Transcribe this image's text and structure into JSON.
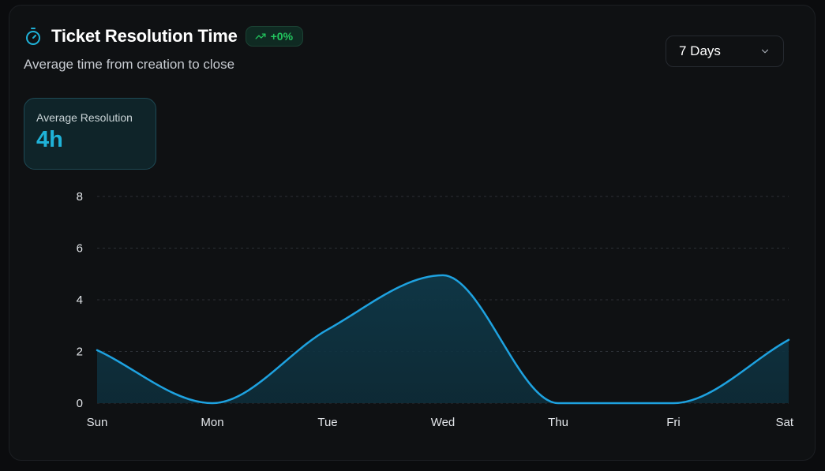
{
  "card": {
    "title": "Ticket Resolution Time",
    "trend": "+0%",
    "subtitle": "Average time from creation to close",
    "range": "7 Days",
    "stat": {
      "label": "Average Resolution",
      "value": "4h"
    }
  },
  "icons": {
    "title": "timer-icon",
    "trend": "trending-up-icon",
    "range": "chevron-down-icon"
  },
  "colors": {
    "accent": "#1ea2e0",
    "trend": "#22c55e",
    "stat_value": "#1fb2d8"
  },
  "chart_data": {
    "type": "area",
    "categories": [
      "Sun",
      "Mon",
      "Tue",
      "Wed",
      "Thu",
      "Fri",
      "Sat"
    ],
    "values": [
      2.05,
      0,
      2.85,
      4.95,
      0,
      0,
      2.45
    ],
    "ylim": [
      0,
      8
    ],
    "yticks": [
      0,
      2,
      4,
      6,
      8
    ],
    "grid": true,
    "curve": "smooth"
  }
}
